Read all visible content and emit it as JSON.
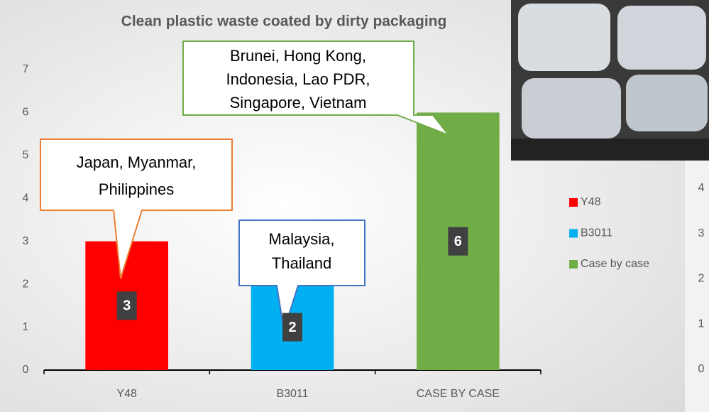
{
  "chart_data": {
    "type": "bar",
    "title": "Clean plastic waste coated by dirty packaging",
    "categories": [
      "Y48",
      "B3011",
      "CASE BY CASE"
    ],
    "series": [
      {
        "name": "Y48",
        "color": "#ff0000",
        "values": [
          3,
          null,
          null
        ]
      },
      {
        "name": "B3011",
        "color": "#00b0f0",
        "values": [
          null,
          2,
          null
        ]
      },
      {
        "name": "Case by case",
        "color": "#70ad47",
        "values": [
          null,
          null,
          6
        ]
      }
    ],
    "ylim": [
      0,
      7
    ],
    "yticks": [
      0,
      1,
      2,
      3,
      4,
      5,
      6,
      7
    ],
    "grid": false,
    "legend": "right",
    "annotations": [
      {
        "lines": [
          "Japan, Myanmar,",
          "Philippines"
        ]
      },
      {
        "lines": [
          "Malaysia,",
          "Thailand"
        ]
      },
      {
        "lines": [
          "Brunei, Hong Kong,",
          "Indonesia, Lao PDR,",
          "Singapore, Vietnam"
        ]
      }
    ]
  },
  "partial_chart": {
    "ylim": [
      0,
      4
    ],
    "yticks": [
      0,
      1,
      2,
      3,
      4
    ]
  }
}
